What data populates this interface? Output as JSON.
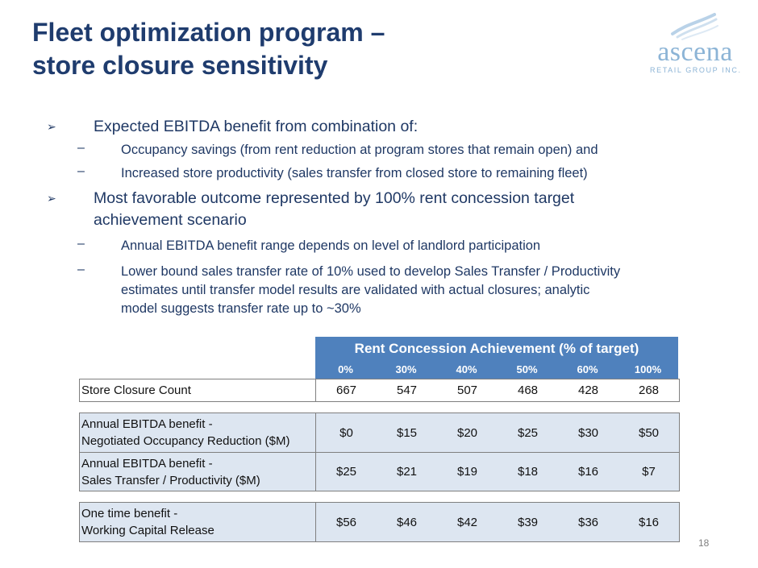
{
  "header": {
    "title_line1": "Fleet optimization program –",
    "title_line2": "store closure sensitivity"
  },
  "logo": {
    "word": "ascena",
    "sub": "RETAIL GROUP INC."
  },
  "bullets": {
    "b1": "Expected EBITDA benefit from combination of:",
    "b1_sub1": "Occupancy savings (from rent reduction at program stores that remain open) and",
    "b1_sub2": "Increased store productivity (sales transfer from closed store to remaining fleet)",
    "b2_line1": "Most favorable outcome represented by 100% rent concession target",
    "b2_line2": "achievement scenario",
    "b2_sub1": "Annual EBITDA benefit range depends on level of landlord participation",
    "b2_sub2_line1": "Lower bound sales transfer rate of 10% used to develop Sales Transfer / Productivity",
    "b2_sub2_line2": "estimates until transfer model results are validated with actual closures;  analytic",
    "b2_sub2_line3": "model suggests transfer rate up to ~30%",
    "arrow": "➢",
    "dash": "–"
  },
  "table": {
    "header": "Rent Concession Achievement (% of target)",
    "columns": [
      "0%",
      "30%",
      "40%",
      "50%",
      "60%",
      "100%"
    ],
    "rows": [
      {
        "label1": "Store Closure Count",
        "label2": "",
        "values": [
          "667",
          "547",
          "507",
          "468",
          "428",
          "268"
        ]
      },
      {
        "label1": "Annual EBITDA benefit -",
        "label2": "Negotiated Occupancy Reduction ($M)",
        "values": [
          "$0",
          "$15",
          "$20",
          "$25",
          "$30",
          "$50"
        ]
      },
      {
        "label1": "Annual EBITDA benefit -",
        "label2": "Sales Transfer / Productivity ($M)",
        "values": [
          "$25",
          "$21",
          "$19",
          "$18",
          "$16",
          "$7"
        ]
      },
      {
        "label1": "One time benefit -",
        "label2": "Working Capital Release",
        "values": [
          "$56",
          "$46",
          "$42",
          "$39",
          "$36",
          "$16"
        ]
      }
    ]
  },
  "footer": {
    "page_number": "18"
  },
  "colors": {
    "title": "#1f3c6e",
    "table_header": "#4f81bd",
    "row_fill": "#dde6f1",
    "logo": "#8cb4d6"
  }
}
